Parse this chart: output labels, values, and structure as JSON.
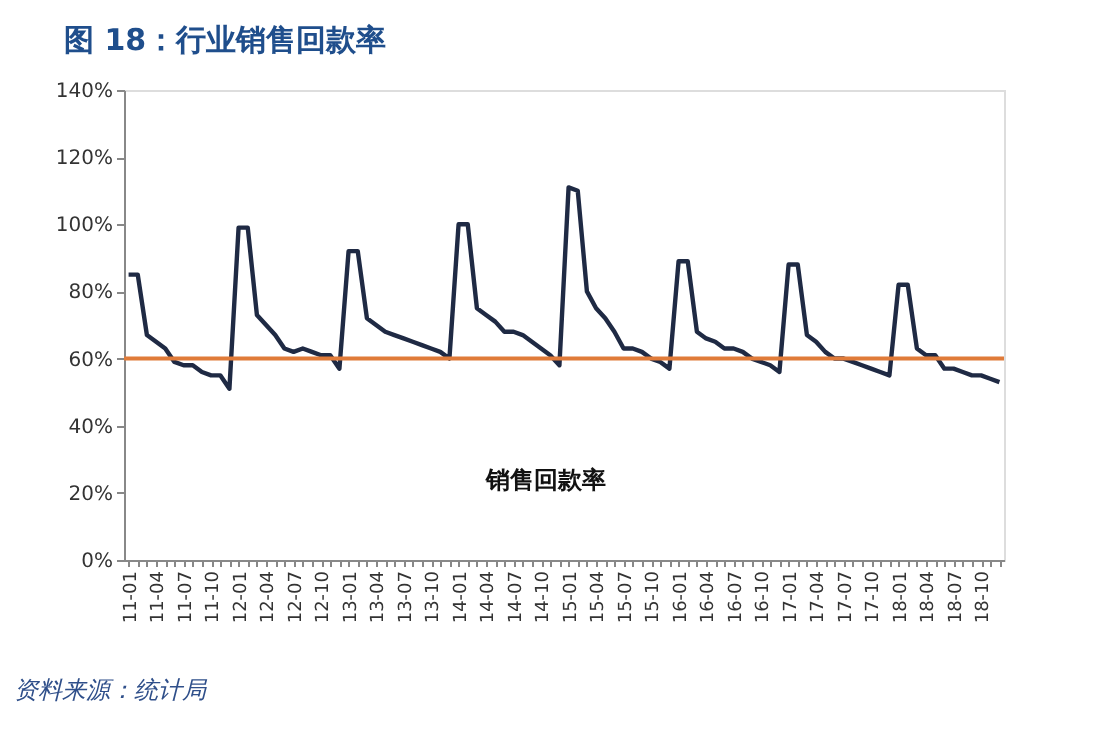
{
  "chart_data": {
    "type": "line",
    "title": "图 18：行业销售回款率",
    "categories": [
      "11-01",
      null,
      null,
      "11-04",
      null,
      null,
      "11-07",
      null,
      null,
      "11-10",
      null,
      null,
      "12-01",
      null,
      null,
      "12-04",
      null,
      null,
      "12-07",
      null,
      null,
      "12-10",
      null,
      null,
      "13-01",
      null,
      null,
      "13-04",
      null,
      null,
      "13-07",
      null,
      null,
      "13-10",
      null,
      null,
      "14-01",
      null,
      null,
      "14-04",
      null,
      null,
      "14-07",
      null,
      null,
      "14-10",
      null,
      null,
      "15-01",
      null,
      null,
      "15-04",
      null,
      null,
      "15-07",
      null,
      null,
      "15-10",
      null,
      null,
      "16-01",
      null,
      null,
      "16-04",
      null,
      null,
      "16-07",
      null,
      null,
      "16-10",
      null,
      null,
      "17-01",
      null,
      null,
      "17-04",
      null,
      null,
      "17-07",
      null,
      null,
      "17-10",
      null,
      null,
      "18-01",
      null,
      null,
      "18-04",
      null,
      null,
      "18-07",
      null,
      null,
      "18-10",
      null,
      null
    ],
    "series": [
      {
        "name": "销售回款率",
        "color": "#1f2a44",
        "values": [
          85,
          85,
          67,
          65,
          63,
          59,
          58,
          58,
          56,
          55,
          55,
          51,
          99,
          99,
          73,
          70,
          67,
          63,
          62,
          63,
          62,
          61,
          61,
          57,
          92,
          92,
          72,
          70,
          68,
          67,
          66,
          65,
          64,
          63,
          62,
          60,
          100,
          100,
          75,
          73,
          71,
          68,
          68,
          67,
          65,
          63,
          61,
          58,
          111,
          110,
          80,
          75,
          72,
          68,
          63,
          63,
          62,
          60,
          59,
          57,
          89,
          89,
          68,
          66,
          65,
          63,
          63,
          62,
          60,
          59,
          58,
          56,
          88,
          88,
          67,
          65,
          62,
          60,
          60,
          59,
          58,
          57,
          56,
          55,
          82,
          82,
          63,
          61,
          61,
          57,
          57,
          56,
          55,
          55,
          54,
          53
        ]
      }
    ],
    "ylim": [
      0,
      140
    ],
    "yticks": [
      {
        "value": 0,
        "label": "0%"
      },
      {
        "value": 20,
        "label": "20%"
      },
      {
        "value": 40,
        "label": "40%"
      },
      {
        "value": 60,
        "label": "60%"
      },
      {
        "value": 80,
        "label": "80%"
      },
      {
        "value": 100,
        "label": "100%"
      },
      {
        "value": 120,
        "label": "120%"
      },
      {
        "value": 140,
        "label": "140%"
      }
    ],
    "ref_lines": [
      {
        "axis": "y",
        "value": 60,
        "color": "#e07b39"
      }
    ],
    "grid": false,
    "annotations": [
      "资料来源：统计局"
    ]
  }
}
